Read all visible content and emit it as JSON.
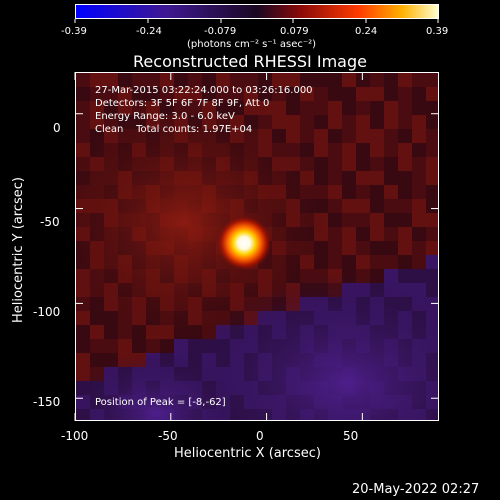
{
  "colorbar": {
    "ticks": [
      "-0.39",
      "-0.24",
      "-0.079",
      "0.079",
      "0.24",
      "0.39"
    ],
    "unit": "(photons cm⁻² s⁻¹ asec⁻²)"
  },
  "title": "Reconstructed RHESSI Image",
  "annotation": {
    "line1": "27-Mar-2015 03:22:24.000 to 03:26:16.000",
    "line2": "Detectors: 3F 5F 6F 7F 8F 9F, Att 0",
    "line3": "Energy Range: 3.0 - 6.0 keV",
    "line4": "Clean    Total counts: 1.97E+04",
    "peak": "Position of Peak = [-8,-62]"
  },
  "axes": {
    "x_label": "Heliocentric X (arcsec)",
    "y_label": "Heliocentric Y (arcsec)",
    "x_ticks": [
      "-100",
      "-50",
      "0",
      "50"
    ],
    "y_ticks": [
      "0",
      "-50",
      "-100",
      "-150"
    ],
    "x_tick_values": [
      -100,
      -50,
      0,
      50
    ],
    "y_tick_values": [
      0,
      -50,
      -100,
      -150
    ],
    "xlim": [
      -100,
      90
    ],
    "ylim": [
      -162,
      22
    ]
  },
  "peak": {
    "x": -8,
    "y": -62
  },
  "footer_date": "20-May-2022 02:27",
  "colors": {
    "background": "#000000",
    "foreground": "#ffffff",
    "negative": "#4b1d8a",
    "positive_low": "#6a0f0a",
    "peak": "#ffffff"
  }
}
